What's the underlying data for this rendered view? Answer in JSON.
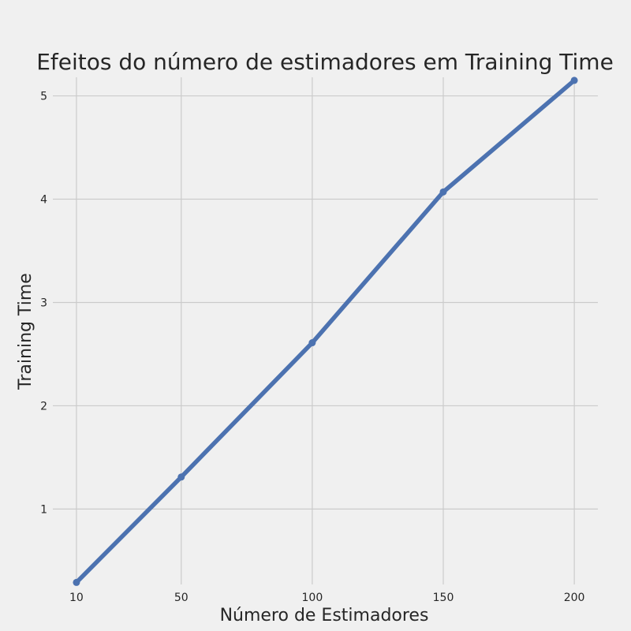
{
  "chart_data": {
    "type": "line",
    "title": "Efeitos do número de estimadores em Training Time",
    "xlabel": "Número de Estimadores",
    "ylabel": "Training Time",
    "x": [
      10,
      50,
      100,
      150,
      200
    ],
    "x_ticks": [
      10,
      50,
      100,
      150,
      200
    ],
    "y_ticks": [
      1,
      2,
      3,
      4,
      5
    ],
    "xlim": [
      1,
      209
    ],
    "ylim": [
      0.27,
      5.18
    ],
    "grid": true,
    "series": [
      {
        "color": "#4c72b0",
        "marker": "circle",
        "values": [
          0.29,
          1.31,
          2.61,
          4.07,
          5.15
        ]
      }
    ]
  }
}
